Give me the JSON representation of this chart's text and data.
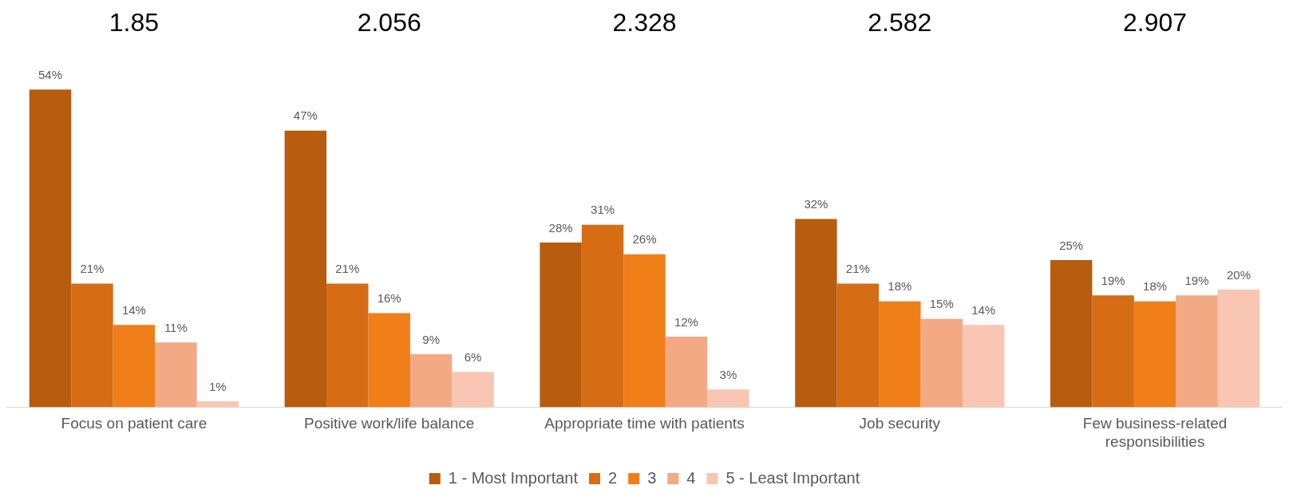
{
  "chart_data": {
    "type": "bar",
    "categories": [
      "Focus on patient care",
      "Positive work/life balance",
      "Appropriate time with patients",
      "Job security",
      "Few business-related responsibilities"
    ],
    "series": [
      {
        "name": "1 - Most Important",
        "color": "#b85c0f",
        "values": [
          54,
          47,
          28,
          32,
          25
        ],
        "value_labels": [
          "54%",
          "47%",
          "28%",
          "32%",
          "25%"
        ]
      },
      {
        "name": "2",
        "color": "#d66d14",
        "values": [
          21,
          21,
          31,
          21,
          19
        ],
        "value_labels": [
          "21%",
          "21%",
          "31%",
          "21%",
          "19%"
        ]
      },
      {
        "name": "3",
        "color": "#f07f1a",
        "values": [
          14,
          16,
          26,
          18,
          18
        ],
        "value_labels": [
          "14%",
          "16%",
          "26%",
          "18%",
          "18%"
        ]
      },
      {
        "name": "4",
        "color": "#f4a985",
        "values": [
          11,
          9,
          12,
          15,
          19
        ],
        "value_labels": [
          "11%",
          "9%",
          "12%",
          "15%",
          "19%"
        ]
      },
      {
        "name": "5 - Least Important",
        "color": "#f8c6b3",
        "values": [
          1,
          6,
          3,
          14,
          20
        ],
        "value_labels": [
          "1%",
          "6%",
          "3%",
          "14%",
          "20%"
        ]
      }
    ],
    "annotations": [
      "1.85",
      "2.056",
      "2.328",
      "2.582",
      "2.907"
    ],
    "grid": false,
    "legend": "bottom"
  }
}
